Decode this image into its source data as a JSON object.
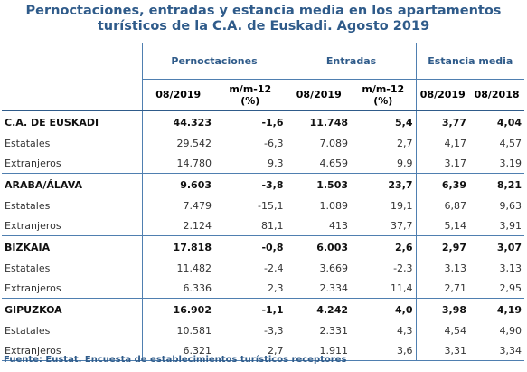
{
  "title_line1": "Pernoctaciones, entradas y estancia media en los apartamentos",
  "title_line2": "turísticos de la C.A. de Euskadi. Agosto 2019",
  "groups": {
    "pernoctaciones": "Pernoctaciones",
    "entradas": "Entradas",
    "estancia": "Estancia media"
  },
  "subheaders": {
    "p_period": "08/2019",
    "p_mm": "m/m-12",
    "p_pct": "(%)",
    "e_period": "08/2019",
    "e_mm": "m/m-12",
    "e_pct": "(%)",
    "s_2019": "08/2019",
    "s_2018": "08/2018"
  },
  "rows": [
    {
      "label": "C.A. DE EUSKADI",
      "main": true,
      "p": "44.323",
      "pm": "-1,6",
      "e": "11.748",
      "em": "5,4",
      "s19": "3,77",
      "s18": "4,04"
    },
    {
      "label": "Estatales",
      "main": false,
      "p": "29.542",
      "pm": "-6,3",
      "e": "7.089",
      "em": "2,7",
      "s19": "4,17",
      "s18": "4,57"
    },
    {
      "label": "Extranjeros",
      "main": false,
      "p": "14.780",
      "pm": "9,3",
      "e": "4.659",
      "em": "9,9",
      "s19": "3,17",
      "s18": "3,19"
    },
    {
      "label": "ARABA/ÁLAVA",
      "main": true,
      "p": "9.603",
      "pm": "-3,8",
      "e": "1.503",
      "em": "23,7",
      "s19": "6,39",
      "s18": "8,21"
    },
    {
      "label": "Estatales",
      "main": false,
      "p": "7.479",
      "pm": "-15,1",
      "e": "1.089",
      "em": "19,1",
      "s19": "6,87",
      "s18": "9,63"
    },
    {
      "label": "Extranjeros",
      "main": false,
      "p": "2.124",
      "pm": "81,1",
      "e": "413",
      "em": "37,7",
      "s19": "5,14",
      "s18": "3,91"
    },
    {
      "label": "BIZKAIA",
      "main": true,
      "p": "17.818",
      "pm": "-0,8",
      "e": "6.003",
      "em": "2,6",
      "s19": "2,97",
      "s18": "3,07"
    },
    {
      "label": "Estatales",
      "main": false,
      "p": "11.482",
      "pm": "-2,4",
      "e": "3.669",
      "em": "-2,3",
      "s19": "3,13",
      "s18": "3,13"
    },
    {
      "label": "Extranjeros",
      "main": false,
      "p": "6.336",
      "pm": "2,3",
      "e": "2.334",
      "em": "11,4",
      "s19": "2,71",
      "s18": "2,95"
    },
    {
      "label": "GIPUZKOA",
      "main": true,
      "p": "16.902",
      "pm": "-1,1",
      "e": "4.242",
      "em": "4,0",
      "s19": "3,98",
      "s18": "4,19"
    },
    {
      "label": "Estatales",
      "main": false,
      "p": "10.581",
      "pm": "-3,3",
      "e": "2.331",
      "em": "4,3",
      "s19": "4,54",
      "s18": "4,90"
    },
    {
      "label": "Extranjeros",
      "main": false,
      "p": "6.321",
      "pm": "2,7",
      "e": "1.911",
      "em": "3,6",
      "s19": "3,31",
      "s18": "3,34"
    }
  ],
  "source": "Fuente: Eustat. Encuesta de establecimientos turísticos receptores"
}
